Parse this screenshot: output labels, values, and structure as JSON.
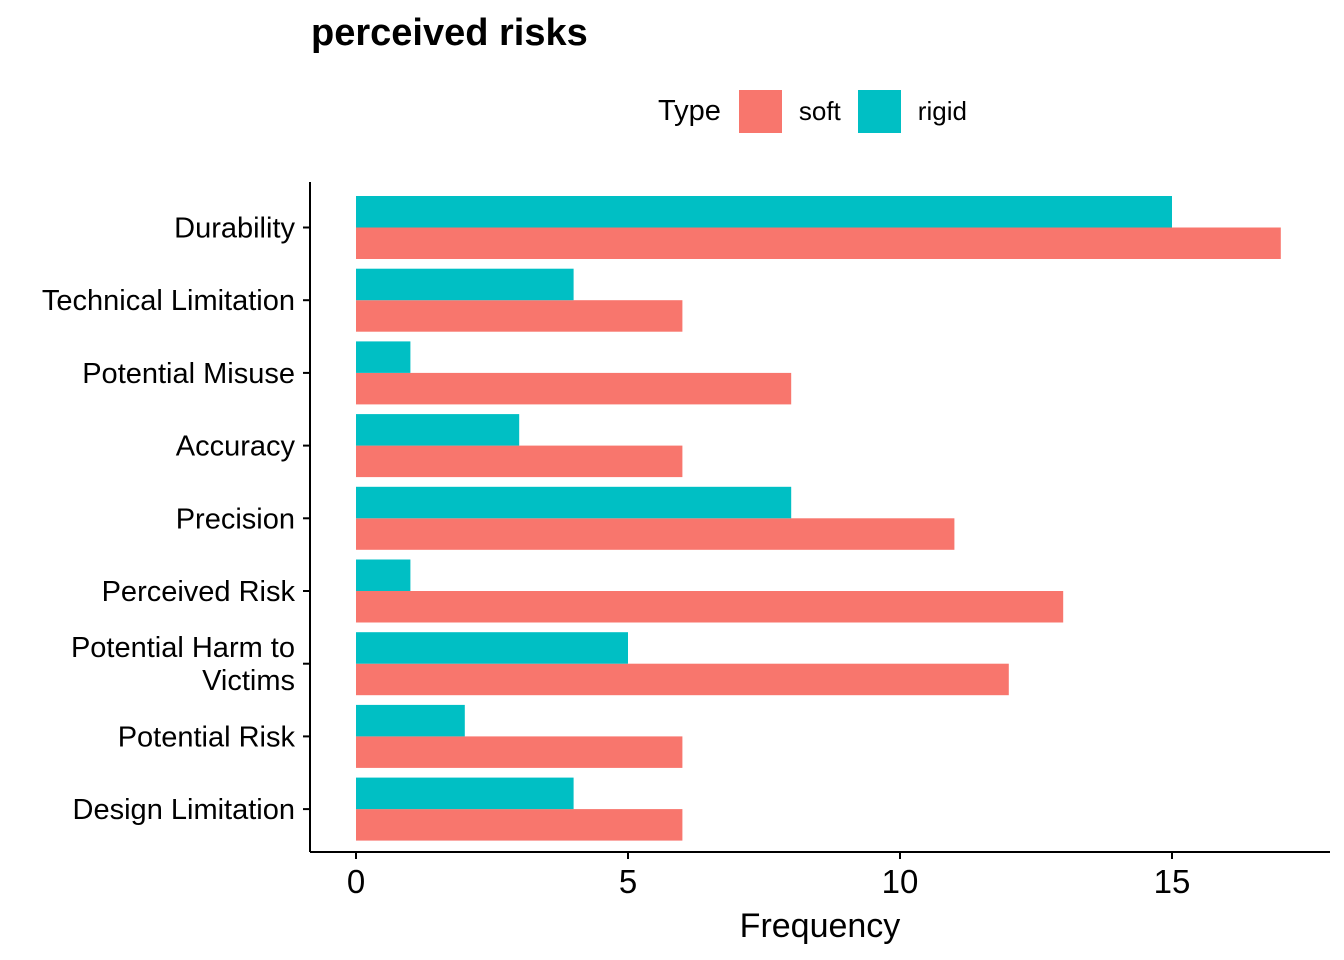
{
  "chart_data": {
    "type": "bar",
    "orientation": "horizontal",
    "title": "perceived risks",
    "xlabel": "Frequency",
    "ylabel": "",
    "categories": [
      "Durability",
      "Technical Limitation",
      "Potential Misuse",
      "Accuracy",
      "Precision",
      "Perceived Risk",
      "Potential Harm to\nVictims",
      "Potential Risk",
      "Design Limitation"
    ],
    "series": [
      {
        "name": "soft",
        "color": "#F8766D",
        "values": [
          17,
          6,
          8,
          6,
          11,
          13,
          12,
          6,
          6
        ]
      },
      {
        "name": "rigid",
        "color": "#00BFC4",
        "values": [
          15,
          4,
          1,
          3,
          8,
          1,
          5,
          2,
          4
        ]
      }
    ],
    "xlim": [
      0,
      17.5
    ],
    "xticks": [
      "0",
      "5",
      "10",
      "15"
    ],
    "legend": {
      "title": "Type",
      "position": "top"
    },
    "grid": false
  }
}
